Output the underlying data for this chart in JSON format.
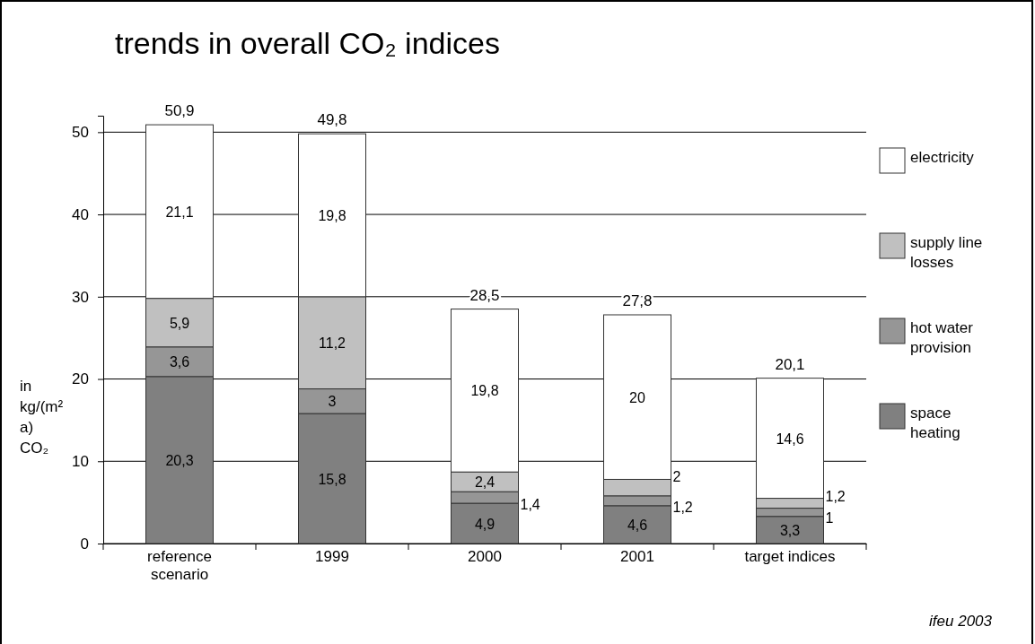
{
  "chart_data": {
    "type": "bar",
    "stacked": true,
    "title": "trends in overall CO₂ indices",
    "ylabel": "in kg/(m² a) CO₂",
    "categories": [
      "reference scenario",
      "1999",
      "2000",
      "2001",
      "target indices"
    ],
    "series": [
      {
        "name": "space heating",
        "color": "#808080",
        "values": [
          20.3,
          15.8,
          4.9,
          4.6,
          3.3
        ],
        "value_labels": [
          "20,3",
          "15,8",
          "4,9",
          "4,6",
          "3,3"
        ]
      },
      {
        "name": "hot water provision",
        "color": "#969696",
        "values": [
          3.6,
          3,
          1.4,
          1.2,
          1
        ],
        "value_labels": [
          "3,6",
          "3",
          "1,4",
          "1,2",
          "1"
        ]
      },
      {
        "name": "supply line losses",
        "color": "#c0c0c0",
        "values": [
          5.9,
          11.2,
          2.4,
          2,
          1.2
        ],
        "value_labels": [
          "5,9",
          "11,2",
          "2,4",
          "2",
          "1,2"
        ]
      },
      {
        "name": "electricity",
        "color": "#ffffff",
        "values": [
          21.1,
          19.8,
          19.8,
          20,
          14.6
        ],
        "value_labels": [
          "21,1",
          "19,8",
          "19,8",
          "20",
          "14,6"
        ]
      }
    ],
    "totals": [
      "50,9",
      "49,8",
      "28,5",
      "27,8",
      "20,1"
    ],
    "ylim": [
      0,
      52
    ],
    "yticks": [
      0,
      10,
      20,
      30,
      40,
      50
    ],
    "grid": "y",
    "legend": "right",
    "annotations": [
      "ifeu 2003"
    ]
  }
}
